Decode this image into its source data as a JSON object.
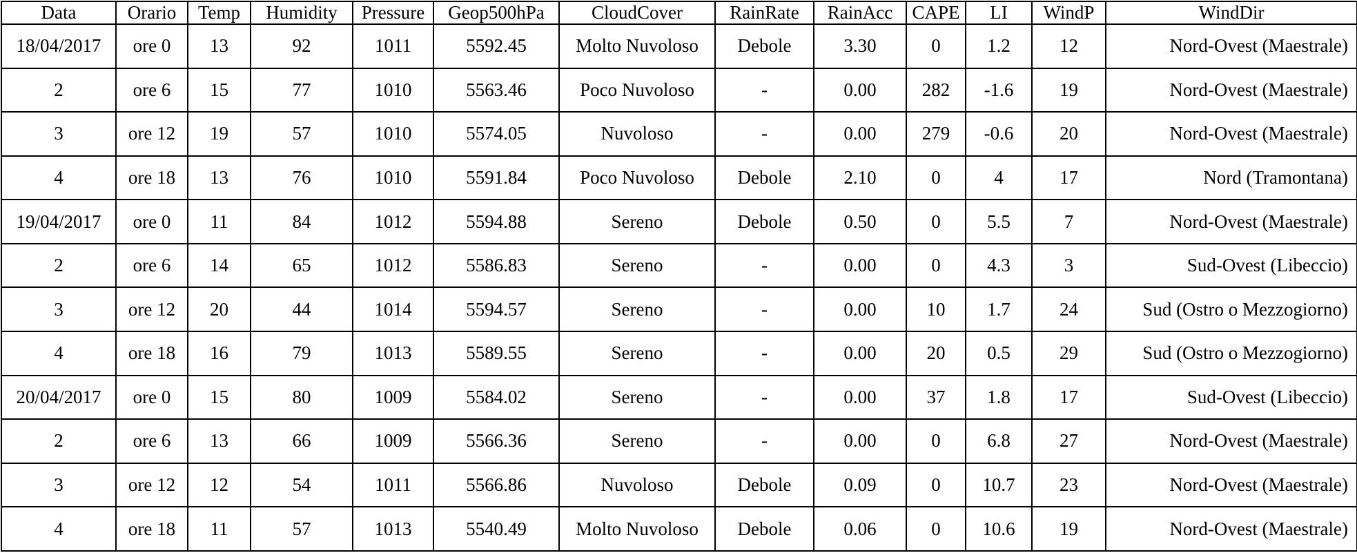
{
  "table": {
    "headers": [
      "Data",
      "Orario",
      "Temp",
      "Humidity",
      "Pressure",
      "Geop500hPa",
      "CloudCover",
      "RainRate",
      "RainAcc",
      "CAPE",
      "LI",
      "WindP",
      "WindDir"
    ],
    "rows": [
      [
        "18/04/2017",
        "ore 0",
        "13",
        "92",
        "1011",
        "5592.45",
        "Molto Nuvoloso",
        "Debole",
        "3.30",
        "0",
        "1.2",
        "12",
        "Nord-Ovest (Maestrale)"
      ],
      [
        "2",
        "ore 6",
        "15",
        "77",
        "1010",
        "5563.46",
        "Poco Nuvoloso",
        "-",
        "0.00",
        "282",
        "-1.6",
        "19",
        "Nord-Ovest (Maestrale)"
      ],
      [
        "3",
        "ore 12",
        "19",
        "57",
        "1010",
        "5574.05",
        "Nuvoloso",
        "-",
        "0.00",
        "279",
        "-0.6",
        "20",
        "Nord-Ovest (Maestrale)"
      ],
      [
        "4",
        "ore 18",
        "13",
        "76",
        "1010",
        "5591.84",
        "Poco Nuvoloso",
        "Debole",
        "2.10",
        "0",
        "4",
        "17",
        "Nord (Tramontana)"
      ],
      [
        "19/04/2017",
        "ore 0",
        "11",
        "84",
        "1012",
        "5594.88",
        "Sereno",
        "Debole",
        "0.50",
        "0",
        "5.5",
        "7",
        "Nord-Ovest (Maestrale)"
      ],
      [
        "2",
        "ore 6",
        "14",
        "65",
        "1012",
        "5586.83",
        "Sereno",
        "-",
        "0.00",
        "0",
        "4.3",
        "3",
        "Sud-Ovest (Libeccio)"
      ],
      [
        "3",
        "ore 12",
        "20",
        "44",
        "1014",
        "5594.57",
        "Sereno",
        "-",
        "0.00",
        "10",
        "1.7",
        "24",
        "Sud (Ostro o Mezzogiorno)"
      ],
      [
        "4",
        "ore 18",
        "16",
        "79",
        "1013",
        "5589.55",
        "Sereno",
        "-",
        "0.00",
        "20",
        "0.5",
        "29",
        "Sud (Ostro o Mezzogiorno)"
      ],
      [
        "20/04/2017",
        "ore 0",
        "15",
        "80",
        "1009",
        "5584.02",
        "Sereno",
        "-",
        "0.00",
        "37",
        "1.8",
        "17",
        "Sud-Ovest (Libeccio)"
      ],
      [
        "2",
        "ore 6",
        "13",
        "66",
        "1009",
        "5566.36",
        "Sereno",
        "-",
        "0.00",
        "0",
        "6.8",
        "27",
        "Nord-Ovest (Maestrale)"
      ],
      [
        "3",
        "ore 12",
        "12",
        "54",
        "1011",
        "5566.86",
        "Nuvoloso",
        "Debole",
        "0.09",
        "0",
        "10.7",
        "23",
        "Nord-Ovest (Maestrale)"
      ],
      [
        "4",
        "ore 18",
        "11",
        "57",
        "1013",
        "5540.49",
        "Molto Nuvoloso",
        "Debole",
        "0.06",
        "0",
        "10.6",
        "19",
        "Nord-Ovest (Maestrale)"
      ]
    ]
  }
}
